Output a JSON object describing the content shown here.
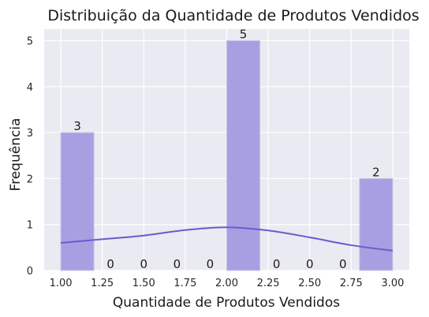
{
  "chart_data": {
    "type": "bar",
    "title": "Distribuição da Quantidade de Produtos Vendidos",
    "xlabel": "Quantidade de Produtos Vendidos",
    "ylabel": "Frequência",
    "xlim": [
      0.9,
      3.1
    ],
    "ylim": [
      0,
      5.25
    ],
    "x_ticks": [
      "1.00",
      "1.25",
      "1.50",
      "1.75",
      "2.00",
      "2.25",
      "2.50",
      "2.75",
      "3.00"
    ],
    "y_ticks": [
      "0",
      "1",
      "2",
      "3",
      "4",
      "5"
    ],
    "bins": [
      {
        "start": 1.0,
        "end": 1.2,
        "count": 3
      },
      {
        "start": 1.2,
        "end": 1.4,
        "count": 0
      },
      {
        "start": 1.4,
        "end": 1.6,
        "count": 0
      },
      {
        "start": 1.6,
        "end": 1.8,
        "count": 0
      },
      {
        "start": 1.8,
        "end": 2.0,
        "count": 0
      },
      {
        "start": 2.0,
        "end": 2.2,
        "count": 5
      },
      {
        "start": 2.2,
        "end": 2.4,
        "count": 0
      },
      {
        "start": 2.4,
        "end": 2.6,
        "count": 0
      },
      {
        "start": 2.6,
        "end": 2.8,
        "count": 0
      },
      {
        "start": 2.8,
        "end": 3.0,
        "count": 2
      }
    ],
    "kde": {
      "x": [
        1.0,
        1.25,
        1.5,
        1.75,
        2.0,
        2.25,
        2.5,
        2.75,
        3.0
      ],
      "y": [
        0.6,
        0.68,
        0.76,
        0.88,
        0.94,
        0.87,
        0.72,
        0.55,
        0.43
      ]
    },
    "grid": true,
    "colors": {
      "background": "#eaeaf2",
      "grid": "#ffffff",
      "bar_fill": "#a89fe3",
      "bar_edge": "#c9c6e6",
      "kde_line": "#6a5acd"
    }
  }
}
